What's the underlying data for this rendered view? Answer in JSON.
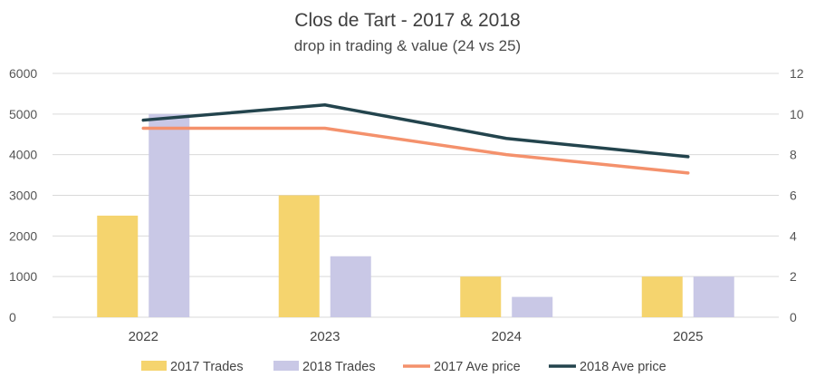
{
  "chart_data": {
    "type": "bar",
    "title": "Clos de Tart - 2017 & 2018",
    "subtitle": "drop in trading & value (24 vs 25)",
    "categories": [
      "2022",
      "2023",
      "2024",
      "2025"
    ],
    "ylim": [
      0,
      6000
    ],
    "yticks": [
      "0",
      "1000",
      "2000",
      "3000",
      "4000",
      "5000",
      "6000"
    ],
    "y2lim": [
      0,
      12
    ],
    "y2ticks": [
      "0",
      "2",
      "4",
      "6",
      "8",
      "10",
      "12"
    ],
    "grid": true,
    "legend_position": "bottom",
    "series": [
      {
        "name": "2017 Trades",
        "type": "bar",
        "axis": "left",
        "color": "#f5d46e",
        "values": [
          2500,
          3000,
          1000,
          1000
        ]
      },
      {
        "name": "2018 Trades",
        "type": "bar",
        "axis": "left",
        "color": "#c9c8e6",
        "values": [
          5000,
          1500,
          500,
          1000
        ]
      },
      {
        "name": "2017 Ave price",
        "type": "line",
        "axis": "right",
        "color": "#f4916c",
        "values": [
          9.3,
          9.3,
          8.0,
          7.1
        ]
      },
      {
        "name": "2018 Ave price",
        "type": "line",
        "axis": "right",
        "color": "#23444d",
        "values": [
          9.7,
          10.45,
          8.8,
          7.9
        ]
      }
    ]
  }
}
